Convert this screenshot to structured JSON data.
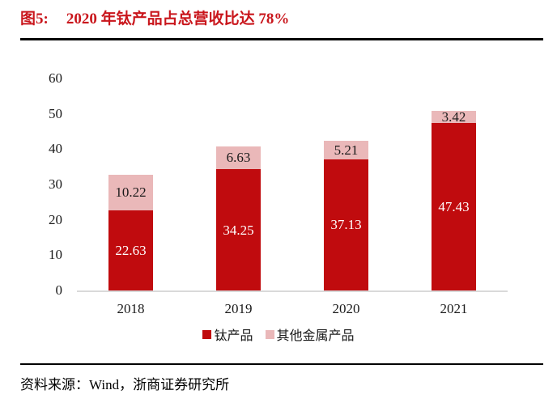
{
  "header": {
    "figure_label": "图5:",
    "title": "2020 年钛产品占总营收比达 78%"
  },
  "chart_data": {
    "type": "bar",
    "stacked": true,
    "categories": [
      "2018",
      "2019",
      "2020",
      "2021"
    ],
    "series": [
      {
        "name": "钛产品",
        "color": "#C00B0E",
        "label_color": "#FFFFFF",
        "values": [
          22.63,
          34.25,
          37.13,
          47.43
        ]
      },
      {
        "name": "其他金属产品",
        "color": "#EAB8B9",
        "label_color": "#1A1A1A",
        "values": [
          10.22,
          6.63,
          5.21,
          3.42
        ]
      }
    ],
    "y_ticks": [
      0,
      10,
      20,
      30,
      40,
      50,
      60
    ],
    "ylim": [
      0,
      60
    ],
    "xlabel": "",
    "ylabel": "",
    "grid": false,
    "legend_position": "bottom",
    "colors": {
      "title_red": "#C9161C",
      "axis_line_gray": "#D9D9D9",
      "divider_black": "#000000"
    }
  },
  "footer": {
    "source_text": "资料来源：Wind，浙商证券研究所"
  }
}
